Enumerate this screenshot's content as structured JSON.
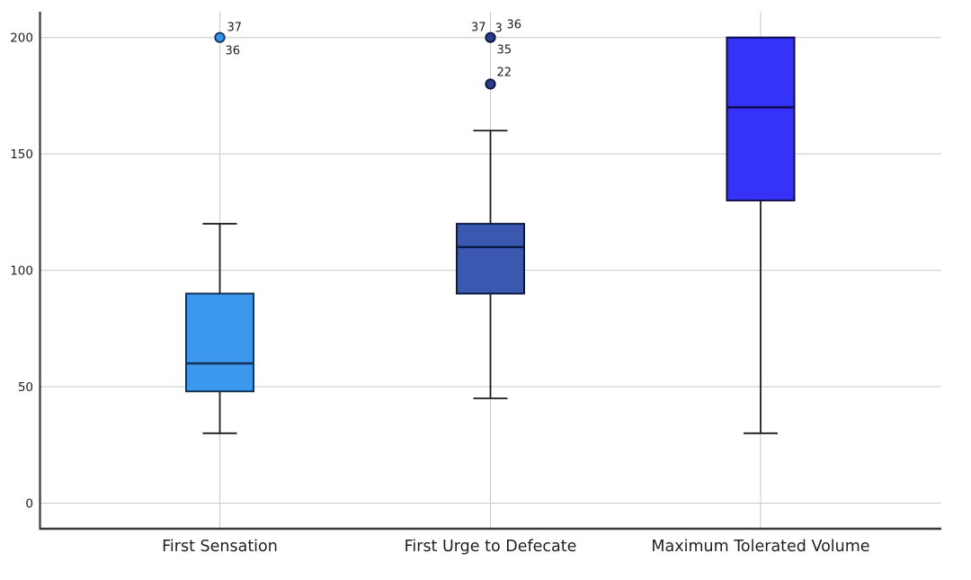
{
  "chart_data": {
    "type": "boxplot",
    "title": "",
    "xlabel": "",
    "ylabel": "",
    "grid": true,
    "legend": "none",
    "yticks": [
      0,
      50,
      100,
      150,
      200
    ],
    "ylim": [
      0,
      211
    ],
    "categories": [
      "First Sensation",
      "First Urge to Defecate",
      "Maximum Tolerated Volume"
    ],
    "colors": {
      "grid": "#c9c9c9",
      "axis": "#3a3a3a",
      "text": "#1e1e1e",
      "whisker": "#1a1a1a",
      "background": "#ffffff"
    },
    "boxes": [
      {
        "category": "First Sensation",
        "whisker_low": 30,
        "q1": 48,
        "median": 60,
        "q3": 90,
        "whisker_high": 120,
        "fill": "#3b98ec",
        "stroke": "#143157",
        "outliers": [
          {
            "value": 200,
            "fill": "#2f96ec",
            "stroke": "#0f2f5c",
            "labels": [
              {
                "text": "37",
                "anchor": "start",
                "dx": 8,
                "dy": -7
              },
              {
                "text": "36",
                "anchor": "start",
                "dx": 6,
                "dy": 19
              }
            ]
          }
        ]
      },
      {
        "category": "First Urge to Defecate",
        "whisker_low": 45,
        "q1": 90,
        "median": 110,
        "q3": 120,
        "whisker_high": 160,
        "fill": "#3a58b0",
        "stroke": "#0d1a44",
        "outliers": [
          {
            "value": 200,
            "fill": "#2b3b8c",
            "stroke": "#0d1440",
            "labels": [
              {
                "text": "37",
                "anchor": "end",
                "dx": -5,
                "dy": -7
              },
              {
                "text": "3",
                "anchor": "start",
                "dx": 5,
                "dy": -6
              },
              {
                "text": "36",
                "anchor": "start",
                "dx": 18,
                "dy": -10
              },
              {
                "text": "35",
                "anchor": "start",
                "dx": 7,
                "dy": 18
              }
            ]
          },
          {
            "value": 180,
            "fill": "#2b3b8c",
            "stroke": "#0d1440",
            "labels": [
              {
                "text": "22",
                "anchor": "start",
                "dx": 7,
                "dy": -9
              }
            ]
          }
        ]
      },
      {
        "category": "Maximum Tolerated Volume",
        "whisker_low": 30,
        "q1": 130,
        "median": 170,
        "q3": 200,
        "whisker_high": null,
        "fill": "#3533f7",
        "stroke": "#0e0c49",
        "outliers": []
      }
    ]
  }
}
